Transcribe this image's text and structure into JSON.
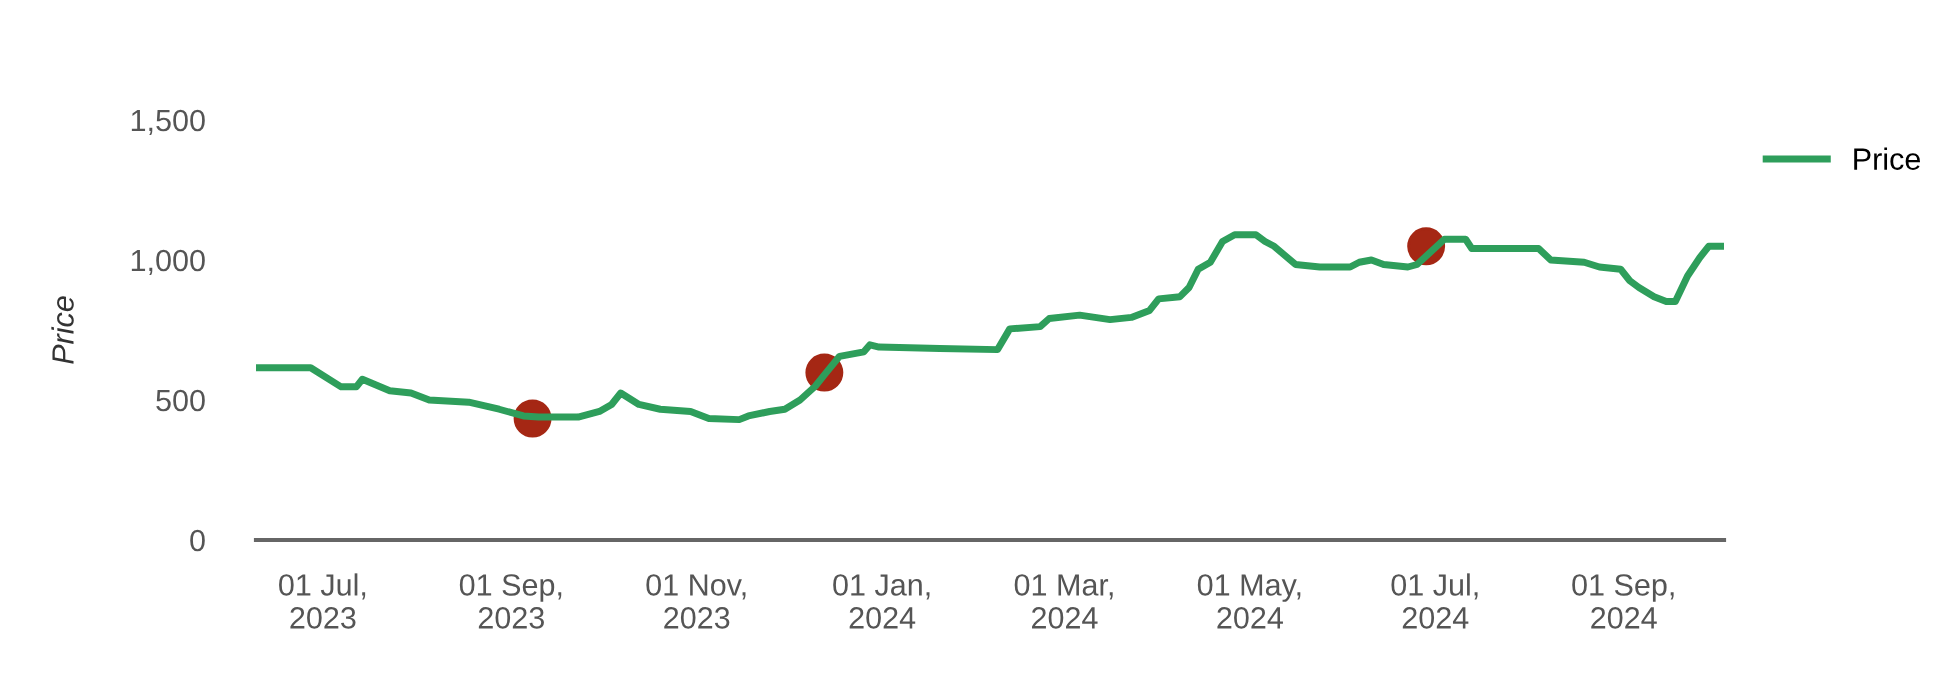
{
  "chart_data": {
    "type": "line",
    "ylabel": "Price",
    "xlim": [
      "2023-06-09",
      "2024-10-04"
    ],
    "xticks": [
      {
        "value": "2023-07-01",
        "label": "01 Jul,\n2023"
      },
      {
        "value": "2023-09-01",
        "label": "01 Sep,\n2023"
      },
      {
        "value": "2023-11-01",
        "label": "01 Nov,\n2023"
      },
      {
        "value": "2024-01-01",
        "label": "01 Jan,\n2024"
      },
      {
        "value": "2024-03-01",
        "label": "01 Mar,\n2024"
      },
      {
        "value": "2024-05-01",
        "label": "01 May,\n2024"
      },
      {
        "value": "2024-07-01",
        "label": "01 Jul,\n2024"
      },
      {
        "value": "2024-09-01",
        "label": "01 Sep,\n2024"
      }
    ],
    "ylim": [
      0,
      1500
    ],
    "yticks": [
      0,
      500,
      {
        "value": 1000,
        "label": "1,000"
      },
      {
        "value": 1500,
        "label": "1,500"
      }
    ],
    "grid": false,
    "legend": "top right",
    "series": [
      {
        "name": "Price",
        "color": "#2e9e5b",
        "x": [
          "2023-06-09",
          "2023-06-27",
          "2023-07-07",
          "2023-07-12",
          "2023-07-14",
          "2023-07-23",
          "2023-07-30",
          "2023-08-05",
          "2023-08-18",
          "2023-08-28",
          "2023-09-05",
          "2023-09-10",
          "2023-09-23",
          "2023-09-30",
          "2023-10-04",
          "2023-10-07",
          "2023-10-13",
          "2023-10-20",
          "2023-10-30",
          "2023-11-05",
          "2023-11-15",
          "2023-11-18",
          "2023-11-25",
          "2023-11-30",
          "2023-12-05",
          "2023-12-10",
          "2023-12-13",
          "2023-12-18",
          "2023-12-26",
          "2023-12-28",
          "2023-12-31",
          "2024-01-20",
          "2024-02-08",
          "2024-02-12",
          "2024-02-22",
          "2024-02-25",
          "2024-03-06",
          "2024-03-16",
          "2024-03-23",
          "2024-03-29",
          "2024-04-01",
          "2024-04-08",
          "2024-04-11",
          "2024-04-14",
          "2024-04-18",
          "2024-04-22",
          "2024-04-26",
          "2024-05-03",
          "2024-05-06",
          "2024-05-09",
          "2024-05-16",
          "2024-05-24",
          "2024-06-03",
          "2024-06-06",
          "2024-06-10",
          "2024-06-14",
          "2024-06-22",
          "2024-06-25",
          "2024-07-04",
          "2024-07-11",
          "2024-07-13",
          "2024-08-04",
          "2024-08-08",
          "2024-08-19",
          "2024-08-24",
          "2024-08-31",
          "2024-09-03",
          "2024-09-06",
          "2024-09-11",
          "2024-09-15",
          "2024-09-18",
          "2024-09-22",
          "2024-09-26",
          "2024-09-29",
          "2024-10-04"
        ],
        "values": [
          615,
          615,
          547,
          547,
          574,
          533,
          525,
          500,
          492,
          467,
          443,
          439,
          439,
          459,
          484,
          525,
          484,
          467,
          459,
          434,
          430,
          443,
          459,
          467,
          500,
          549,
          590,
          656,
          672,
          697,
          689,
          684,
          680,
          754,
          762,
          791,
          803,
          787,
          795,
          820,
          861,
          869,
          902,
          967,
          992,
          1066,
          1090,
          1090,
          1066,
          1049,
          984,
          975,
          975,
          992,
          1000,
          984,
          975,
          984,
          1074,
          1074,
          1041,
          1041,
          1000,
          992,
          975,
          967,
          926,
          902,
          869,
          852,
          852,
          943,
          1008,
          1049,
          1049
        ]
      },
      {
        "type": "scatter",
        "color": "#a52714",
        "marker": "circle",
        "x": [
          "2023-09-08",
          "2023-12-13",
          "2024-06-28"
        ],
        "values": [
          434,
          598,
          1049
        ]
      }
    ]
  }
}
